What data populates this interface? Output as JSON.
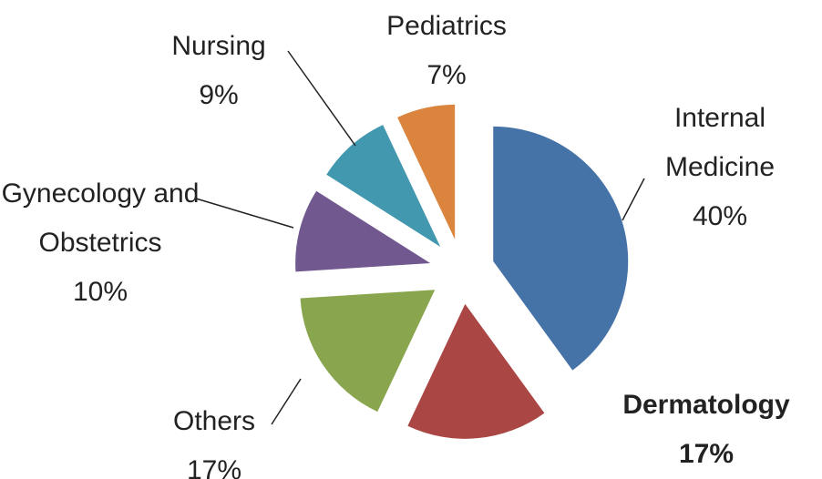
{
  "chart_data": {
    "type": "pie",
    "categories": [
      "Internal Medicine",
      "Dermatology",
      "Others",
      "Gynecology and Obstetrics",
      "Nursing",
      "Pediatrics"
    ],
    "values": [
      40,
      17,
      17,
      10,
      9,
      7
    ],
    "value_labels": [
      "40%",
      "17%",
      "17%",
      "10%",
      "9%",
      "7%"
    ],
    "colors": [
      "#4572a7",
      "#aa4643",
      "#89a54e",
      "#71588f",
      "#4198af",
      "#db843d"
    ]
  }
}
